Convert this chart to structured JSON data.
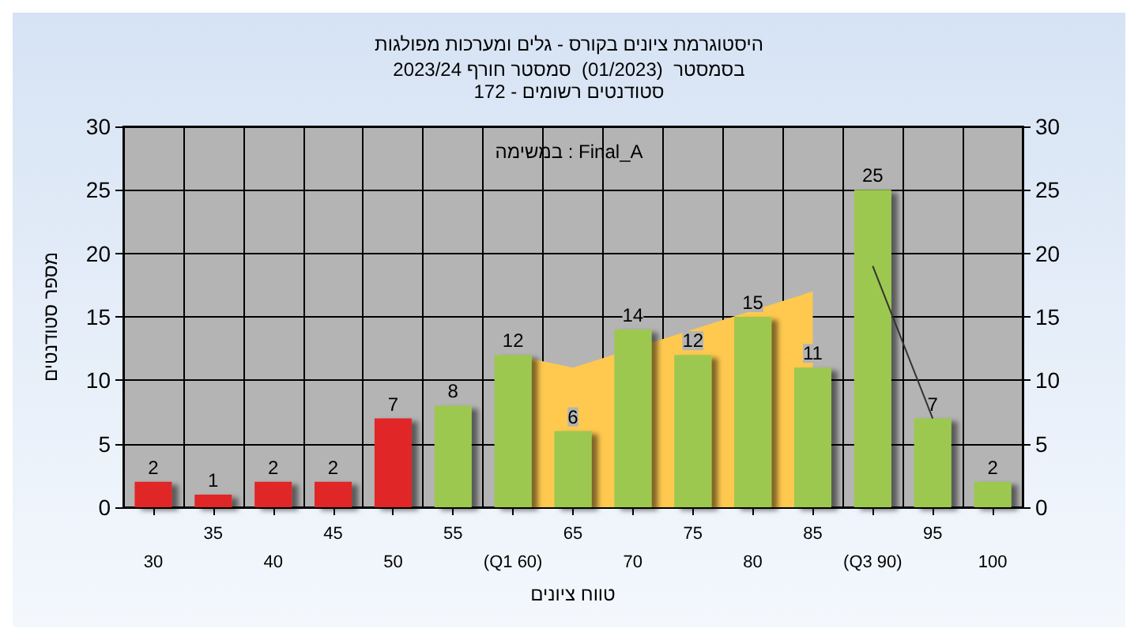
{
  "chart_data": {
    "type": "bar",
    "title": "היסטוגרמת ציונים בקורס - גלים ומערכות מפולגות",
    "subtitle": "בסמסטר  (01/2023)  סמסטר חורף 2023/24\nסטודנטים רשומים - 172",
    "xlabel": "טווח ציונים",
    "ylabel": "מספר סטודנטים",
    "annotations": [
      "במשימה : Final_A"
    ],
    "categories": [
      "30",
      "35",
      "40",
      "45",
      "50",
      "55",
      "(Q1 60)",
      "65",
      "70",
      "75",
      "80",
      "85",
      "(Q3 90)",
      "95",
      "100"
    ],
    "series": [
      {
        "type": "area",
        "color": "#ffc94f",
        "values": [
          null,
          null,
          null,
          null,
          null,
          null,
          12,
          11,
          null,
          14,
          null,
          17,
          null,
          null,
          null
        ]
      },
      {
        "type": "line",
        "color": "#333333",
        "marker": "none",
        "values": [
          null,
          null,
          null,
          null,
          null,
          null,
          null,
          null,
          null,
          null,
          null,
          null,
          19,
          7,
          null
        ]
      },
      {
        "values": [
          2,
          1,
          2,
          2,
          7,
          8,
          12,
          6,
          14,
          12,
          15,
          11,
          25,
          7,
          2
        ],
        "data_labels": true,
        "colors": [
          "#e02828",
          "#e02828",
          "#e02828",
          "#e02828",
          "#e02828",
          "#9cc850",
          "#9cc850",
          "#9cc850",
          "#9cc850",
          "#9cc850",
          "#9cc850",
          "#9cc850",
          "#9cc850",
          "#9cc850",
          "#9cc850"
        ]
      }
    ],
    "ylim": [
      0,
      30
    ],
    "yticks": [
      0,
      5,
      10,
      15,
      20,
      25,
      30
    ],
    "y2lim": [
      0,
      30
    ],
    "y2ticks": [
      0,
      5,
      10,
      15,
      20,
      25,
      30
    ],
    "grid": true
  }
}
